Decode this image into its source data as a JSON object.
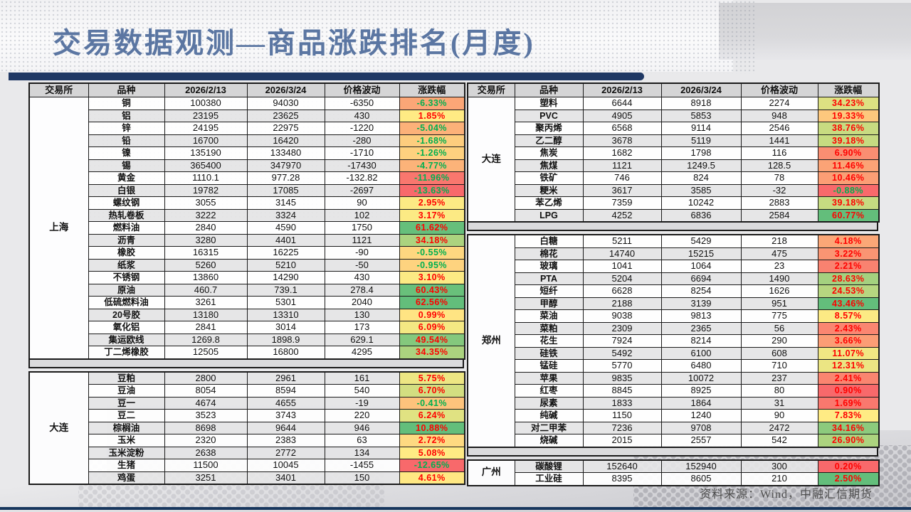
{
  "title": "交易数据观测—商品涨跌排名(月度)",
  "footer": "资料来源：Wind，中融汇信期货",
  "colors": {
    "up_text": "#FF0000",
    "down_text": "#00B050",
    "scale_red": "#F8696B",
    "scale_yellow": "#FFEB84",
    "scale_green": "#63BE7B",
    "title_text": "#5B76A2",
    "title_bar": "#1F3864",
    "header_cell": "#D5D5D6"
  },
  "table": {
    "columns": [
      "交易所",
      "品种",
      "2026/2/13",
      "2026/3/24",
      "价格波动",
      "涨跌幅"
    ],
    "left_sections": [
      {
        "exchange": "上海",
        "rows": [
          {
            "name": "铜",
            "d0213": "100380",
            "d0324": "94030",
            "change": "-6350",
            "pct": "-6.33%",
            "bg": "#FBA677"
          },
          {
            "name": "铝",
            "d0213": "23195",
            "d0324": "23625",
            "change": "430",
            "pct": "1.85%",
            "bg": "#FFEB84"
          },
          {
            "name": "锌",
            "d0213": "24195",
            "d0324": "22975",
            "change": "-1220",
            "pct": "-5.04%",
            "bg": "#FCB179"
          },
          {
            "name": "铅",
            "d0213": "16700",
            "d0324": "16420",
            "change": "-280",
            "pct": "-1.68%",
            "bg": "#FDCD7E"
          },
          {
            "name": "镍",
            "d0213": "135190",
            "d0324": "133480",
            "change": "-1710",
            "pct": "-1.26%",
            "bg": "#FED17F"
          },
          {
            "name": "锡",
            "d0213": "365400",
            "d0324": "347970",
            "change": "-17430",
            "pct": "-4.77%",
            "bg": "#FCB379"
          },
          {
            "name": "黄金",
            "d0213": "1110.1",
            "d0324": "977.28",
            "change": "-132.82",
            "pct": "-11.96%",
            "bg": "#F9776E"
          },
          {
            "name": "白银",
            "d0213": "19782",
            "d0324": "17085",
            "change": "-2697",
            "pct": "-13.63%",
            "bg": "#F8696B"
          },
          {
            "name": "螺纹钢",
            "d0213": "3055",
            "d0324": "3145",
            "change": "90",
            "pct": "2.95%",
            "bg": "#FCEA84"
          },
          {
            "name": "热轧卷板",
            "d0213": "3222",
            "d0324": "3324",
            "change": "102",
            "pct": "3.17%",
            "bg": "#FCEA84"
          },
          {
            "name": "燃料油",
            "d0213": "2840",
            "d0324": "4590",
            "change": "1750",
            "pct": "61.62%",
            "bg": "#66BF7B"
          },
          {
            "name": "沥青",
            "d0213": "3280",
            "d0324": "4401",
            "change": "1121",
            "pct": "34.18%",
            "bg": "#ACD37F"
          },
          {
            "name": "橡胶",
            "d0213": "16315",
            "d0324": "16225",
            "change": "-90",
            "pct": "-0.55%",
            "bg": "#FED780"
          },
          {
            "name": "纸浆",
            "d0213": "5260",
            "d0324": "5210",
            "change": "-50",
            "pct": "-0.95%",
            "bg": "#FED37F"
          },
          {
            "name": "不锈钢",
            "d0213": "13860",
            "d0324": "14290",
            "change": "430",
            "pct": "3.10%",
            "bg": "#FCEA84"
          },
          {
            "name": "原油",
            "d0213": "460.7",
            "d0324": "739.1",
            "change": "278.4",
            "pct": "60.43%",
            "bg": "#69C07B"
          },
          {
            "name": "低硫燃料油",
            "d0213": "3261",
            "d0324": "5301",
            "change": "2040",
            "pct": "62.56%",
            "bg": "#63BE7B"
          },
          {
            "name": "20号胶",
            "d0213": "13180",
            "d0324": "13310",
            "change": "130",
            "pct": "0.99%",
            "bg": "#FFE483"
          },
          {
            "name": "氧化铝",
            "d0213": "2841",
            "d0324": "3014",
            "change": "173",
            "pct": "6.09%",
            "bg": "#F4E883"
          },
          {
            "name": "集运欧线",
            "d0213": "1269.8",
            "d0324": "1898.9",
            "change": "629.1",
            "pct": "49.54%",
            "bg": "#84C87D"
          },
          {
            "name": "丁二烯橡胶",
            "d0213": "12505",
            "d0324": "16800",
            "change": "4295",
            "pct": "34.35%",
            "bg": "#ABD37F"
          }
        ]
      },
      {
        "exchange": "大连",
        "rows": [
          {
            "name": "豆粕",
            "d0213": "2800",
            "d0324": "2961",
            "change": "161",
            "pct": "5.75%",
            "bg": "#EDE683"
          },
          {
            "name": "豆油",
            "d0213": "8054",
            "d0324": "8594",
            "change": "540",
            "pct": "6.70%",
            "bg": "#D3DE81"
          },
          {
            "name": "豆一",
            "d0213": "4674",
            "d0324": "4655",
            "change": "-19",
            "pct": "-0.41%",
            "bg": "#FDC37C"
          },
          {
            "name": "豆二",
            "d0213": "3523",
            "d0324": "3743",
            "change": "220",
            "pct": "6.24%",
            "bg": "#E0E282"
          },
          {
            "name": "棕榈油",
            "d0213": "8698",
            "d0324": "9644",
            "change": "946",
            "pct": "10.88%",
            "bg": "#63BE7B"
          },
          {
            "name": "玉米",
            "d0213": "2320",
            "d0324": "2383",
            "change": "63",
            "pct": "2.72%",
            "bg": "#FEDA81"
          },
          {
            "name": "玉米淀粉",
            "d0213": "2638",
            "d0324": "2772",
            "change": "134",
            "pct": "5.08%",
            "bg": "#FFEB84"
          },
          {
            "name": "生猪",
            "d0213": "11500",
            "d0324": "10045",
            "change": "-1455",
            "pct": "-12.65%",
            "bg": "#F8696B"
          },
          {
            "name": "鸡蛋",
            "d0213": "3251",
            "d0324": "3401",
            "change": "150",
            "pct": "4.61%",
            "bg": "#FFE883"
          }
        ]
      }
    ],
    "right_sections": [
      {
        "exchange": "大连",
        "rows": [
          {
            "name": "塑料",
            "d0213": "6644",
            "d0324": "8918",
            "change": "2274",
            "pct": "34.23%",
            "bg": "#DDE182"
          },
          {
            "name": "PVC",
            "d0213": "4905",
            "d0324": "5853",
            "change": "948",
            "pct": "19.33%",
            "bg": "#FDC87D"
          },
          {
            "name": "聚丙烯",
            "d0213": "6568",
            "d0324": "9114",
            "change": "2546",
            "pct": "38.76%",
            "bg": "#C8DB81"
          },
          {
            "name": "乙二醇",
            "d0213": "3678",
            "d0324": "5119",
            "change": "1441",
            "pct": "39.18%",
            "bg": "#C6DB81"
          },
          {
            "name": "焦炭",
            "d0213": "1682",
            "d0324": "1798",
            "change": "116",
            "pct": "6.90%",
            "bg": "#FA8E72"
          },
          {
            "name": "焦煤",
            "d0213": "1121",
            "d0324": "1249.5",
            "change": "128.5",
            "pct": "11.46%",
            "bg": "#FBA376"
          },
          {
            "name": "铁矿",
            "d0213": "746",
            "d0324": "824",
            "change": "78",
            "pct": "10.46%",
            "bg": "#FB9E75"
          },
          {
            "name": "粳米",
            "d0213": "3617",
            "d0324": "3585",
            "change": "-32",
            "pct": "-0.88%",
            "bg": "#F8696B"
          },
          {
            "name": "苯乙烯",
            "d0213": "7359",
            "d0324": "10242",
            "change": "2883",
            "pct": "39.18%",
            "bg": "#C6DB81"
          },
          {
            "name": "LPG",
            "d0213": "4252",
            "d0324": "6836",
            "change": "2584",
            "pct": "60.77%",
            "bg": "#63BE7B"
          }
        ]
      },
      {
        "exchange": "郑州",
        "rows": [
          {
            "name": "白糖",
            "d0213": "5211",
            "d0324": "5429",
            "change": "218",
            "pct": "4.18%",
            "bg": "#FBA777"
          },
          {
            "name": "棉花",
            "d0213": "14740",
            "d0324": "15215",
            "change": "475",
            "pct": "3.22%",
            "bg": "#FA9573"
          },
          {
            "name": "玻璃",
            "d0213": "1041",
            "d0324": "1064",
            "change": "23",
            "pct": "2.21%",
            "bg": "#F98270"
          },
          {
            "name": "PTA",
            "d0213": "5204",
            "d0324": "6694",
            "change": "1490",
            "pct": "28.63%",
            "bg": "#A4D17F"
          },
          {
            "name": "短纤",
            "d0213": "6628",
            "d0324": "8254",
            "change": "1626",
            "pct": "24.53%",
            "bg": "#B6D680"
          },
          {
            "name": "甲醇",
            "d0213": "2188",
            "d0324": "3139",
            "change": "951",
            "pct": "43.46%",
            "bg": "#63BE7B"
          },
          {
            "name": "菜油",
            "d0213": "9038",
            "d0324": "9813",
            "change": "775",
            "pct": "8.57%",
            "bg": "#FCEA84"
          },
          {
            "name": "菜粕",
            "d0213": "2309",
            "d0324": "2365",
            "change": "56",
            "pct": "2.43%",
            "bg": "#FA8671"
          },
          {
            "name": "花生",
            "d0213": "7924",
            "d0324": "8214",
            "change": "290",
            "pct": "3.66%",
            "bg": "#FB9D75"
          },
          {
            "name": "硅铁",
            "d0213": "5492",
            "d0324": "6100",
            "change": "608",
            "pct": "11.07%",
            "bg": "#F1E783"
          },
          {
            "name": "锰硅",
            "d0213": "5770",
            "d0324": "6480",
            "change": "710",
            "pct": "12.31%",
            "bg": "#EBE583"
          },
          {
            "name": "苹果",
            "d0213": "9835",
            "d0324": "10072",
            "change": "237",
            "pct": "2.41%",
            "bg": "#FA8570"
          },
          {
            "name": "红枣",
            "d0213": "8845",
            "d0324": "8925",
            "change": "80",
            "pct": "0.90%",
            "bg": "#F8696B"
          },
          {
            "name": "尿素",
            "d0213": "1833",
            "d0324": "1864",
            "change": "31",
            "pct": "1.69%",
            "bg": "#F9786E"
          },
          {
            "name": "纯碱",
            "d0213": "1150",
            "d0324": "1240",
            "change": "90",
            "pct": "7.83%",
            "bg": "#FFEB84"
          },
          {
            "name": "对二甲苯",
            "d0213": "7236",
            "d0324": "9708",
            "change": "2472",
            "pct": "34.16%",
            "bg": "#8CCA7D"
          },
          {
            "name": "烧碱",
            "d0213": "2015",
            "d0324": "2557",
            "change": "542",
            "pct": "26.90%",
            "bg": "#ACD37F"
          }
        ]
      },
      {
        "exchange": "广州",
        "rows": [
          {
            "name": "碳酸锂",
            "d0213": "152640",
            "d0324": "152940",
            "change": "300",
            "pct": "0.20%",
            "bg": "#F8696B"
          },
          {
            "name": "工业硅",
            "d0213": "8395",
            "d0324": "8605",
            "change": "210",
            "pct": "2.50%",
            "bg": "#63BE7B"
          }
        ]
      }
    ]
  }
}
